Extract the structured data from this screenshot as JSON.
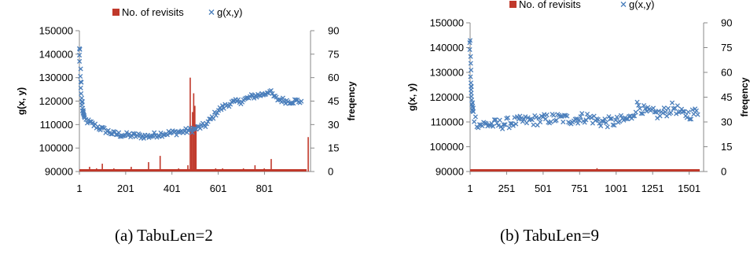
{
  "chart_data": [
    {
      "type": "bar+scatter",
      "caption": "(a) TabuLen=2",
      "legend": {
        "bar_label": "No. of revisits",
        "scatter_label": "g(x,y)",
        "placement": "top-center"
      },
      "ylabel_left": "g(x, y)",
      "ylabel_right": "freqency",
      "x_ticks": [
        "1",
        "201",
        "401",
        "601",
        "801"
      ],
      "xlim": [
        1,
        1000
      ],
      "y_left_ticks": [
        "90000",
        "100000",
        "110000",
        "120000",
        "130000",
        "140000",
        "150000"
      ],
      "y_left_lim": [
        90000,
        150000
      ],
      "y_right_ticks": [
        "0",
        "15",
        "30",
        "45",
        "60",
        "75",
        "90"
      ],
      "y_right_lim": [
        0,
        90
      ],
      "colors": {
        "bars": "#c0392b",
        "scatter": "#4a7ebb"
      },
      "scatter_profile": [
        [
          1,
          142000
        ],
        [
          3,
          138000
        ],
        [
          6,
          130000
        ],
        [
          10,
          122000
        ],
        [
          15,
          116000
        ],
        [
          25,
          112000
        ],
        [
          60,
          110000
        ],
        [
          100,
          108000
        ],
        [
          150,
          106000
        ],
        [
          200,
          105500
        ],
        [
          300,
          105000
        ],
        [
          350,
          106000
        ],
        [
          400,
          106500
        ],
        [
          450,
          107000
        ],
        [
          500,
          108000
        ],
        [
          550,
          110000
        ],
        [
          600,
          116000
        ],
        [
          650,
          119000
        ],
        [
          700,
          120000
        ],
        [
          750,
          122000
        ],
        [
          800,
          123000
        ],
        [
          820,
          124500
        ],
        [
          850,
          121000
        ],
        [
          900,
          120000
        ],
        [
          960,
          120000
        ]
      ],
      "scatter_spread": 1200,
      "bars": [
        [
          45,
          3
        ],
        [
          75,
          2
        ],
        [
          100,
          5
        ],
        [
          150,
          2
        ],
        [
          200,
          1
        ],
        [
          225,
          3
        ],
        [
          300,
          6
        ],
        [
          330,
          1
        ],
        [
          350,
          10
        ],
        [
          370,
          1
        ],
        [
          400,
          1
        ],
        [
          430,
          2
        ],
        [
          450,
          1
        ],
        [
          470,
          4
        ],
        [
          480,
          60
        ],
        [
          485,
          28
        ],
        [
          490,
          38
        ],
        [
          495,
          50
        ],
        [
          500,
          42
        ],
        [
          505,
          30
        ],
        [
          510,
          1
        ],
        [
          590,
          2
        ],
        [
          620,
          2
        ],
        [
          650,
          1
        ],
        [
          680,
          1
        ],
        [
          710,
          2
        ],
        [
          760,
          4
        ],
        [
          800,
          2
        ],
        [
          830,
          8
        ],
        [
          850,
          1
        ],
        [
          880,
          1
        ],
        [
          900,
          1
        ],
        [
          940,
          1
        ],
        [
          975,
          1
        ],
        [
          990,
          22
        ]
      ]
    },
    {
      "type": "bar+scatter",
      "caption": "(b) TabuLen=9",
      "legend": {
        "bar_label": "No. of revisits",
        "scatter_label": "g(x,y)",
        "placement": "top-center"
      },
      "ylabel_left": "g(x, y)",
      "ylabel_right": "freqency",
      "x_ticks": [
        "1",
        "251",
        "501",
        "751",
        "1001",
        "1251",
        "1501"
      ],
      "xlim": [
        1,
        1600
      ],
      "y_left_ticks": [
        "90000",
        "100000",
        "110000",
        "120000",
        "130000",
        "140000",
        "150000"
      ],
      "y_left_lim": [
        90000,
        150000
      ],
      "y_right_ticks": [
        "0",
        "15",
        "30",
        "45",
        "60",
        "75",
        "90"
      ],
      "y_right_lim": [
        0,
        90
      ],
      "colors": {
        "bars": "#c0392b",
        "scatter": "#4a7ebb"
      },
      "scatter_profile": [
        [
          1,
          142000
        ],
        [
          4,
          135000
        ],
        [
          8,
          126000
        ],
        [
          15,
          118000
        ],
        [
          25,
          112000
        ],
        [
          60,
          109000
        ],
        [
          200,
          109000
        ],
        [
          300,
          110000
        ],
        [
          400,
          110500
        ],
        [
          500,
          111000
        ],
        [
          600,
          111500
        ],
        [
          700,
          111000
        ],
        [
          800,
          112000
        ],
        [
          900,
          110000
        ],
        [
          1000,
          110000
        ],
        [
          1100,
          111500
        ],
        [
          1150,
          117000
        ],
        [
          1200,
          114000
        ],
        [
          1300,
          113000
        ],
        [
          1400,
          116000
        ],
        [
          1450,
          113000
        ],
        [
          1500,
          113000
        ],
        [
          1560,
          114000
        ]
      ],
      "scatter_spread": 2200,
      "bars": [
        [
          200,
          1
        ],
        [
          400,
          1
        ],
        [
          600,
          1
        ],
        [
          750,
          1
        ],
        [
          870,
          2
        ],
        [
          900,
          1
        ],
        [
          1000,
          1
        ],
        [
          1200,
          1
        ],
        [
          1400,
          1
        ],
        [
          1550,
          1
        ]
      ]
    }
  ]
}
